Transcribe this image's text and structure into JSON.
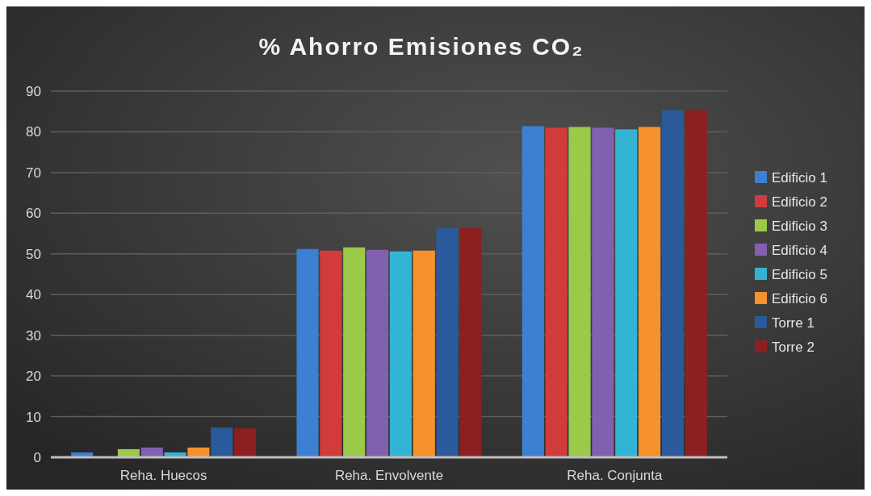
{
  "chart_data": {
    "type": "bar",
    "title": "% Ahorro Emisiones CO₂",
    "categories": [
      "Reha. Huecos",
      "Reha. Envolvente",
      "Reha. Conjunta"
    ],
    "series": [
      {
        "name": "Edificio 1",
        "color": "#3d7fd0",
        "values": [
          1.2,
          51.2,
          81.4
        ]
      },
      {
        "name": "Edificio 2",
        "color": "#d23b3b",
        "values": [
          0,
          50.8,
          81.0
        ]
      },
      {
        "name": "Edificio 3",
        "color": "#9bc94a",
        "values": [
          2.0,
          51.6,
          81.2
        ]
      },
      {
        "name": "Edificio 4",
        "color": "#8260b0",
        "values": [
          2.4,
          51.0,
          81.0
        ]
      },
      {
        "name": "Edificio 5",
        "color": "#34b4d4",
        "values": [
          1.2,
          50.6,
          80.6
        ]
      },
      {
        "name": "Edificio 6",
        "color": "#f5922e",
        "values": [
          2.4,
          50.8,
          81.2
        ]
      },
      {
        "name": "Torre 1",
        "color": "#2a5a9c",
        "values": [
          7.3,
          56.3,
          85.3
        ]
      },
      {
        "name": "Torre 2",
        "color": "#8c2020",
        "values": [
          7.1,
          56.3,
          85.3
        ]
      }
    ],
    "ylim": [
      0,
      90
    ],
    "yticks": [
      0,
      10,
      20,
      30,
      40,
      50,
      60,
      70,
      80,
      90
    ],
    "grid": "y",
    "legend": "right"
  }
}
